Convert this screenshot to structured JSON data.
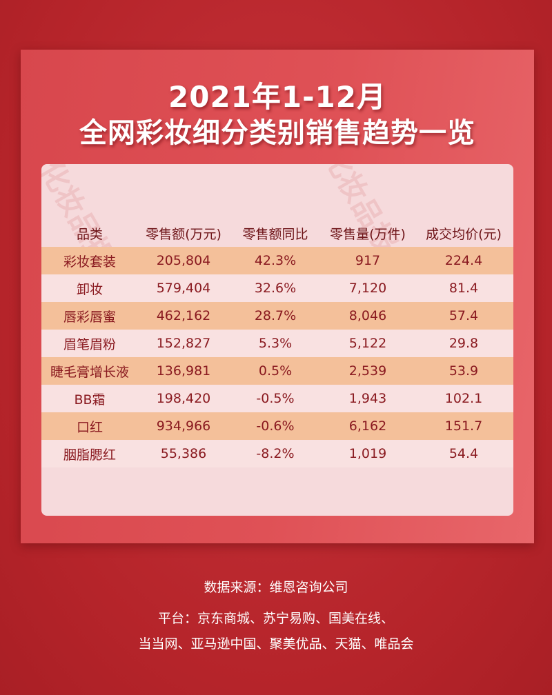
{
  "title_line1": "2021年1-12月",
  "title_line2": "全网彩妆细分类别销售趋势一览",
  "watermark": "化妆品报",
  "footer": {
    "source": "数据来源：维恩咨询公司",
    "platform_line1": "平台：京东商城、苏宁易购、国美在线、",
    "platform_line2": "当当网、亚马逊中国、聚美优品、天猫、唯品会"
  },
  "colors": {
    "background": "#b8262c",
    "card": "#df5156",
    "panel": "#f6dadc",
    "row_highlight": "#f4c09a",
    "row_light": "#f9e1e1",
    "text_dark_red": "#8a1a20"
  },
  "chart_data": {
    "type": "table",
    "columns": [
      "品类",
      "零售额(万元)",
      "零售额同比",
      "零售量(万件)",
      "成交均价(元)"
    ],
    "rows": [
      [
        "彩妆套装",
        "205,804",
        "42.3%",
        "917",
        "224.4"
      ],
      [
        "卸妆",
        "579,404",
        "32.6%",
        "7,120",
        "81.4"
      ],
      [
        "唇彩唇蜜",
        "462,162",
        "28.7%",
        "8,046",
        "57.4"
      ],
      [
        "眉笔眉粉",
        "152,827",
        "5.3%",
        "5,122",
        "29.8"
      ],
      [
        "睫毛膏增长液",
        "136,981",
        "0.5%",
        "2,539",
        "53.9"
      ],
      [
        "BB霜",
        "198,420",
        "-0.5%",
        "1,943",
        "102.1"
      ],
      [
        "口红",
        "934,966",
        "-0.6%",
        "6,162",
        "151.7"
      ],
      [
        "胭脂腮红",
        "55,386",
        "-8.2%",
        "1,019",
        "54.4"
      ]
    ]
  }
}
